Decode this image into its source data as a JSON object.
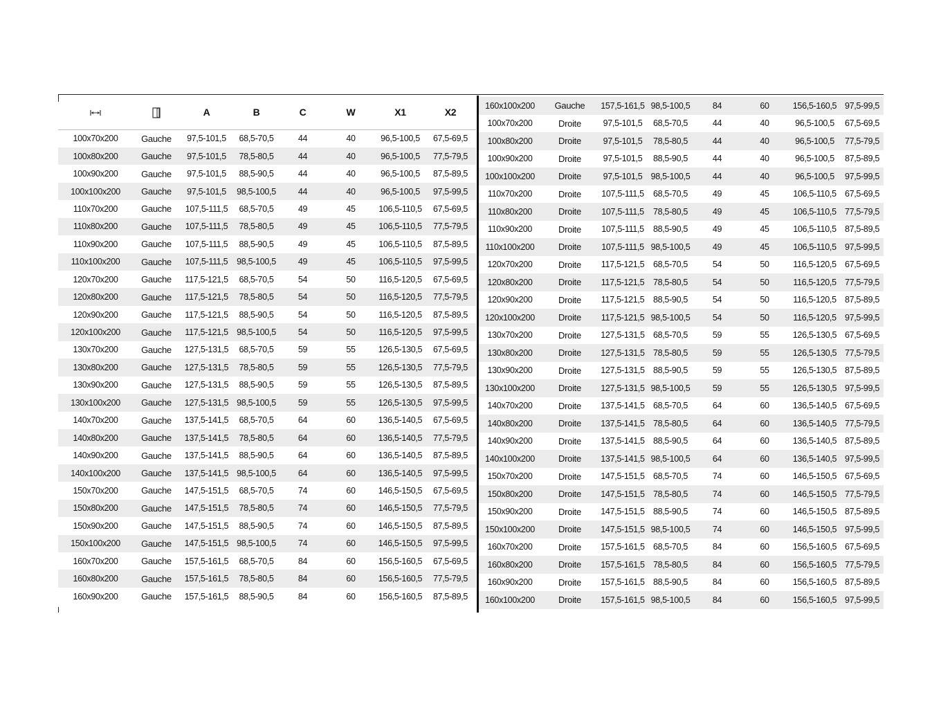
{
  "headers": {
    "size_icon": "width-arrows-icon",
    "side_icon": "door-icon",
    "cols": [
      "A",
      "B",
      "C",
      "W",
      "X1",
      "X2"
    ]
  },
  "colors": {
    "stripe": "#ebebeb",
    "rule": "#111111"
  },
  "left_rows": [
    [
      "100x70x200",
      "Gauche",
      "97,5-101,5",
      "68,5-70,5",
      "44",
      "40",
      "96,5-100,5",
      "67,5-69,5"
    ],
    [
      "100x80x200",
      "Gauche",
      "97,5-101,5",
      "78,5-80,5",
      "44",
      "40",
      "96,5-100,5",
      "77,5-79,5"
    ],
    [
      "100x90x200",
      "Gauche",
      "97,5-101,5",
      "88,5-90,5",
      "44",
      "40",
      "96,5-100,5",
      "87,5-89,5"
    ],
    [
      "100x100x200",
      "Gauche",
      "97,5-101,5",
      "98,5-100,5",
      "44",
      "40",
      "96,5-100,5",
      "97,5-99,5"
    ],
    [
      "110x70x200",
      "Gauche",
      "107,5-111,5",
      "68,5-70,5",
      "49",
      "45",
      "106,5-110,5",
      "67,5-69,5"
    ],
    [
      "110x80x200",
      "Gauche",
      "107,5-111,5",
      "78,5-80,5",
      "49",
      "45",
      "106,5-110,5",
      "77,5-79,5"
    ],
    [
      "110x90x200",
      "Gauche",
      "107,5-111,5",
      "88,5-90,5",
      "49",
      "45",
      "106,5-110,5",
      "87,5-89,5"
    ],
    [
      "110x100x200",
      "Gauche",
      "107,5-111,5",
      "98,5-100,5",
      "49",
      "45",
      "106,5-110,5",
      "97,5-99,5"
    ],
    [
      "120x70x200",
      "Gauche",
      "117,5-121,5",
      "68,5-70,5",
      "54",
      "50",
      "116,5-120,5",
      "67,5-69,5"
    ],
    [
      "120x80x200",
      "Gauche",
      "117,5-121,5",
      "78,5-80,5",
      "54",
      "50",
      "116,5-120,5",
      "77,5-79,5"
    ],
    [
      "120x90x200",
      "Gauche",
      "117,5-121,5",
      "88,5-90,5",
      "54",
      "50",
      "116,5-120,5",
      "87,5-89,5"
    ],
    [
      "120x100x200",
      "Gauche",
      "117,5-121,5",
      "98,5-100,5",
      "54",
      "50",
      "116,5-120,5",
      "97,5-99,5"
    ],
    [
      "130x70x200",
      "Gauche",
      "127,5-131,5",
      "68,5-70,5",
      "59",
      "55",
      "126,5-130,5",
      "67,5-69,5"
    ],
    [
      "130x80x200",
      "Gauche",
      "127,5-131,5",
      "78,5-80,5",
      "59",
      "55",
      "126,5-130,5",
      "77,5-79,5"
    ],
    [
      "130x90x200",
      "Gauche",
      "127,5-131,5",
      "88,5-90,5",
      "59",
      "55",
      "126,5-130,5",
      "87,5-89,5"
    ],
    [
      "130x100x200",
      "Gauche",
      "127,5-131,5",
      "98,5-100,5",
      "59",
      "55",
      "126,5-130,5",
      "97,5-99,5"
    ],
    [
      "140x70x200",
      "Gauche",
      "137,5-141,5",
      "68,5-70,5",
      "64",
      "60",
      "136,5-140,5",
      "67,5-69,5"
    ],
    [
      "140x80x200",
      "Gauche",
      "137,5-141,5",
      "78,5-80,5",
      "64",
      "60",
      "136,5-140,5",
      "77,5-79,5"
    ],
    [
      "140x90x200",
      "Gauche",
      "137,5-141,5",
      "88,5-90,5",
      "64",
      "60",
      "136,5-140,5",
      "87,5-89,5"
    ],
    [
      "140x100x200",
      "Gauche",
      "137,5-141,5",
      "98,5-100,5",
      "64",
      "60",
      "136,5-140,5",
      "97,5-99,5"
    ],
    [
      "150x70x200",
      "Gauche",
      "147,5-151,5",
      "68,5-70,5",
      "74",
      "60",
      "146,5-150,5",
      "67,5-69,5"
    ],
    [
      "150x80x200",
      "Gauche",
      "147,5-151,5",
      "78,5-80,5",
      "74",
      "60",
      "146,5-150,5",
      "77,5-79,5"
    ],
    [
      "150x90x200",
      "Gauche",
      "147,5-151,5",
      "88,5-90,5",
      "74",
      "60",
      "146,5-150,5",
      "87,5-89,5"
    ],
    [
      "150x100x200",
      "Gauche",
      "147,5-151,5",
      "98,5-100,5",
      "74",
      "60",
      "146,5-150,5",
      "97,5-99,5"
    ],
    [
      "160x70x200",
      "Gauche",
      "157,5-161,5",
      "68,5-70,5",
      "84",
      "60",
      "156,5-160,5",
      "67,5-69,5"
    ],
    [
      "160x80x200",
      "Gauche",
      "157,5-161,5",
      "78,5-80,5",
      "84",
      "60",
      "156,5-160,5",
      "77,5-79,5"
    ],
    [
      "160x90x200",
      "Gauche",
      "157,5-161,5",
      "88,5-90,5",
      "84",
      "60",
      "156,5-160,5",
      "87,5-89,5"
    ]
  ],
  "right_rows": [
    [
      "160x100x200",
      "Gauche",
      "157,5-161,5",
      "98,5-100,5",
      "84",
      "60",
      "156,5-160,5",
      "97,5-99,5"
    ],
    [
      "100x70x200",
      "Droite",
      "97,5-101,5",
      "68,5-70,5",
      "44",
      "40",
      "96,5-100,5",
      "67,5-69,5"
    ],
    [
      "100x80x200",
      "Droite",
      "97,5-101,5",
      "78,5-80,5",
      "44",
      "40",
      "96,5-100,5",
      "77,5-79,5"
    ],
    [
      "100x90x200",
      "Droite",
      "97,5-101,5",
      "88,5-90,5",
      "44",
      "40",
      "96,5-100,5",
      "87,5-89,5"
    ],
    [
      "100x100x200",
      "Droite",
      "97,5-101,5",
      "98,5-100,5",
      "44",
      "40",
      "96,5-100,5",
      "97,5-99,5"
    ],
    [
      "110x70x200",
      "Droite",
      "107,5-111,5",
      "68,5-70,5",
      "49",
      "45",
      "106,5-110,5",
      "67,5-69,5"
    ],
    [
      "110x80x200",
      "Droite",
      "107,5-111,5",
      "78,5-80,5",
      "49",
      "45",
      "106,5-110,5",
      "77,5-79,5"
    ],
    [
      "110x90x200",
      "Droite",
      "107,5-111,5",
      "88,5-90,5",
      "49",
      "45",
      "106,5-110,5",
      "87,5-89,5"
    ],
    [
      "110x100x200",
      "Droite",
      "107,5-111,5",
      "98,5-100,5",
      "49",
      "45",
      "106,5-110,5",
      "97,5-99,5"
    ],
    [
      "120x70x200",
      "Droite",
      "117,5-121,5",
      "68,5-70,5",
      "54",
      "50",
      "116,5-120,5",
      "67,5-69,5"
    ],
    [
      "120x80x200",
      "Droite",
      "117,5-121,5",
      "78,5-80,5",
      "54",
      "50",
      "116,5-120,5",
      "77,5-79,5"
    ],
    [
      "120x90x200",
      "Droite",
      "117,5-121,5",
      "88,5-90,5",
      "54",
      "50",
      "116,5-120,5",
      "87,5-89,5"
    ],
    [
      "120x100x200",
      "Droite",
      "117,5-121,5",
      "98,5-100,5",
      "54",
      "50",
      "116,5-120,5",
      "97,5-99,5"
    ],
    [
      "130x70x200",
      "Droite",
      "127,5-131,5",
      "68,5-70,5",
      "59",
      "55",
      "126,5-130,5",
      "67,5-69,5"
    ],
    [
      "130x80x200",
      "Droite",
      "127,5-131,5",
      "78,5-80,5",
      "59",
      "55",
      "126,5-130,5",
      "77,5-79,5"
    ],
    [
      "130x90x200",
      "Droite",
      "127,5-131,5",
      "88,5-90,5",
      "59",
      "55",
      "126,5-130,5",
      "87,5-89,5"
    ],
    [
      "130x100x200",
      "Droite",
      "127,5-131,5",
      "98,5-100,5",
      "59",
      "55",
      "126,5-130,5",
      "97,5-99,5"
    ],
    [
      "140x70x200",
      "Droite",
      "137,5-141,5",
      "68,5-70,5",
      "64",
      "60",
      "136,5-140,5",
      "67,5-69,5"
    ],
    [
      "140x80x200",
      "Droite",
      "137,5-141,5",
      "78,5-80,5",
      "64",
      "60",
      "136,5-140,5",
      "77,5-79,5"
    ],
    [
      "140x90x200",
      "Droite",
      "137,5-141,5",
      "88,5-90,5",
      "64",
      "60",
      "136,5-140,5",
      "87,5-89,5"
    ],
    [
      "140x100x200",
      "Droite",
      "137,5-141,5",
      "98,5-100,5",
      "64",
      "60",
      "136,5-140,5",
      "97,5-99,5"
    ],
    [
      "150x70x200",
      "Droite",
      "147,5-151,5",
      "68,5-70,5",
      "74",
      "60",
      "146,5-150,5",
      "67,5-69,5"
    ],
    [
      "150x80x200",
      "Droite",
      "147,5-151,5",
      "78,5-80,5",
      "74",
      "60",
      "146,5-150,5",
      "77,5-79,5"
    ],
    [
      "150x90x200",
      "Droite",
      "147,5-151,5",
      "88,5-90,5",
      "74",
      "60",
      "146,5-150,5",
      "87,5-89,5"
    ],
    [
      "150x100x200",
      "Droite",
      "147,5-151,5",
      "98,5-100,5",
      "74",
      "60",
      "146,5-150,5",
      "97,5-99,5"
    ],
    [
      "160x70x200",
      "Droite",
      "157,5-161,5",
      "68,5-70,5",
      "84",
      "60",
      "156,5-160,5",
      "67,5-69,5"
    ],
    [
      "160x80x200",
      "Droite",
      "157,5-161,5",
      "78,5-80,5",
      "84",
      "60",
      "156,5-160,5",
      "77,5-79,5"
    ],
    [
      "160x90x200",
      "Droite",
      "157,5-161,5",
      "88,5-90,5",
      "84",
      "60",
      "156,5-160,5",
      "87,5-89,5"
    ],
    [
      "160x100x200",
      "Droite",
      "157,5-161,5",
      "98,5-100,5",
      "84",
      "60",
      "156,5-160,5",
      "97,5-99,5"
    ]
  ]
}
